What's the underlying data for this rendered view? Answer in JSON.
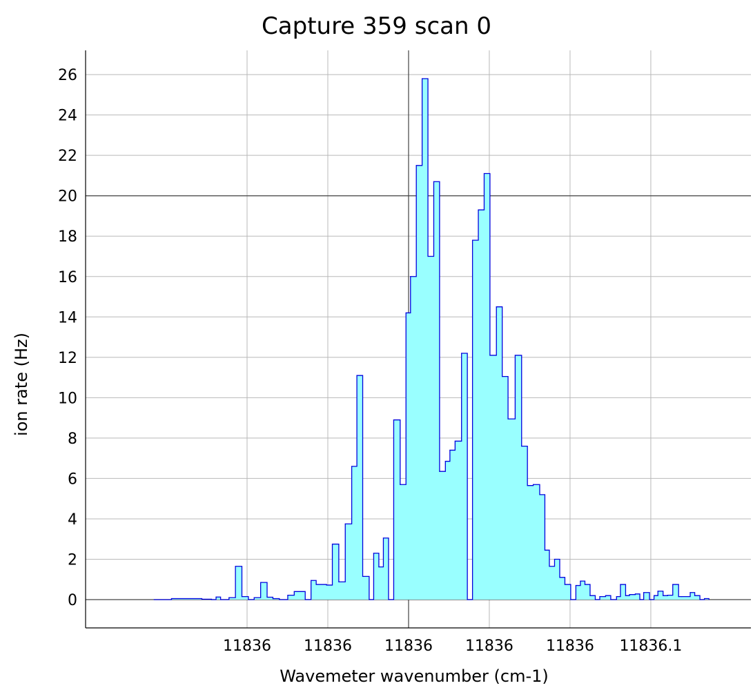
{
  "chart_data": {
    "type": "area",
    "title": "Capture 359 scan 0",
    "xlabel": "Wavemeter wavenumber (cm-1)",
    "ylabel": "ion rate (Hz)",
    "x_tick_labels": [
      "11836",
      "11836",
      "11836",
      "11836",
      "11836",
      "11836.1"
    ],
    "y_ticks": [
      0,
      2,
      4,
      6,
      8,
      10,
      12,
      14,
      16,
      18,
      20,
      22,
      24,
      26
    ],
    "ylim": [
      -1.4,
      27.2
    ],
    "xlim": [
      -0.05,
      0.053
    ],
    "grid": true,
    "fill_color": "#99ffff",
    "line_color": "#0000dd",
    "series": [
      {
        "points": [
          [
            -0.0394,
            0
          ],
          [
            -0.0367,
            0.05
          ],
          [
            -0.032,
            0.02
          ],
          [
            -0.0305,
            0
          ],
          [
            -0.0298,
            0.13
          ],
          [
            -0.0291,
            0
          ],
          [
            -0.0278,
            0.1
          ],
          [
            -0.0268,
            1.65
          ],
          [
            -0.0258,
            0.15
          ],
          [
            -0.0248,
            0
          ],
          [
            -0.0239,
            0.1
          ],
          [
            -0.0229,
            0.85
          ],
          [
            -0.0219,
            0.12
          ],
          [
            -0.021,
            0.05
          ],
          [
            -0.02,
            0
          ],
          [
            -0.0187,
            0.22
          ],
          [
            -0.0177,
            0.4
          ],
          [
            -0.016,
            0
          ],
          [
            -0.0151,
            0.95
          ],
          [
            -0.0143,
            0.75
          ],
          [
            -0.0127,
            0.72
          ],
          [
            -0.0118,
            2.75
          ],
          [
            -0.0108,
            0.88
          ],
          [
            -0.0098,
            3.75
          ],
          [
            -0.0088,
            6.6
          ],
          [
            -0.008,
            11.1
          ],
          [
            -0.0071,
            1.15
          ],
          [
            -0.0061,
            0
          ],
          [
            -0.0054,
            2.3
          ],
          [
            -0.0046,
            1.62
          ],
          [
            -0.0039,
            3.05
          ],
          [
            -0.0031,
            0
          ],
          [
            -0.0023,
            8.9
          ],
          [
            -0.0013,
            5.7
          ],
          [
            -0.0004,
            14.2
          ],
          [
            0.0003,
            16.0
          ],
          [
            0.0012,
            21.5
          ],
          [
            0.0021,
            25.8
          ],
          [
            0.003,
            17.0
          ],
          [
            0.0039,
            20.7
          ],
          [
            0.0048,
            6.35
          ],
          [
            0.0057,
            6.85
          ],
          [
            0.0064,
            7.4
          ],
          [
            0.0072,
            7.85
          ],
          [
            0.0082,
            12.2
          ],
          [
            0.0091,
            0
          ],
          [
            0.0099,
            17.8
          ],
          [
            0.0108,
            19.3
          ],
          [
            0.0117,
            21.1
          ],
          [
            0.0126,
            12.1
          ],
          [
            0.0136,
            14.5
          ],
          [
            0.0145,
            11.05
          ],
          [
            0.0154,
            8.95
          ],
          [
            0.0165,
            12.1
          ],
          [
            0.0175,
            7.6
          ],
          [
            0.0184,
            5.65
          ],
          [
            0.0193,
            5.7
          ],
          [
            0.0203,
            5.2
          ],
          [
            0.0211,
            2.45
          ],
          [
            0.0218,
            1.65
          ],
          [
            0.0226,
            2.0
          ],
          [
            0.0234,
            1.1
          ],
          [
            0.0242,
            0.75
          ],
          [
            0.0251,
            0
          ],
          [
            0.0259,
            0.7
          ],
          [
            0.0266,
            0.92
          ],
          [
            0.0273,
            0.75
          ],
          [
            0.0281,
            0.2
          ],
          [
            0.0289,
            0
          ],
          [
            0.0296,
            0.15
          ],
          [
            0.0305,
            0.2
          ],
          [
            0.0313,
            0
          ],
          [
            0.0322,
            0.15
          ],
          [
            0.0328,
            0.75
          ],
          [
            0.0336,
            0.2
          ],
          [
            0.0342,
            0.25
          ],
          [
            0.0351,
            0.28
          ],
          [
            0.0358,
            0
          ],
          [
            0.0364,
            0.35
          ],
          [
            0.0373,
            0
          ],
          [
            0.038,
            0.2
          ],
          [
            0.0386,
            0.42
          ],
          [
            0.0394,
            0.2
          ],
          [
            0.0401,
            0.22
          ],
          [
            0.0409,
            0.75
          ],
          [
            0.0418,
            0.15
          ],
          [
            0.0423,
            0.15
          ],
          [
            0.0436,
            0.35
          ],
          [
            0.0443,
            0.2
          ],
          [
            0.0451,
            0
          ],
          [
            0.0458,
            0.05
          ],
          [
            0.0465,
            0
          ]
        ]
      }
    ]
  }
}
